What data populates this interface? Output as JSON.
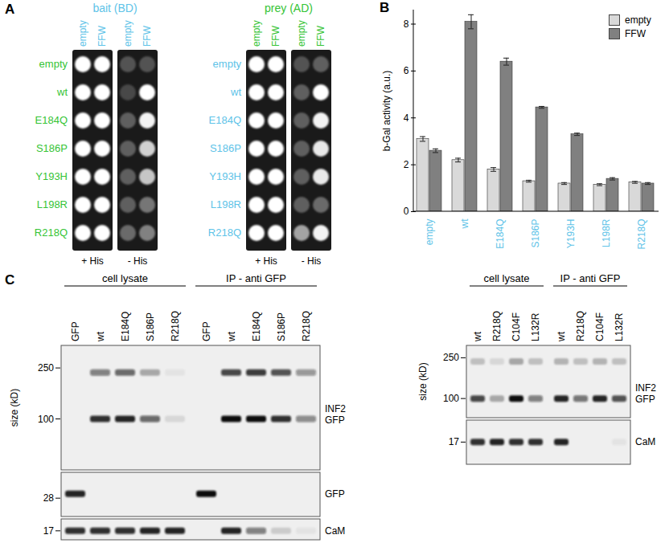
{
  "chart_data": {
    "type": "bar",
    "title": "B",
    "categories": [
      "empty",
      "wt",
      "E184Q",
      "S186P",
      "Y193H",
      "L198R",
      "R218Q"
    ],
    "series": [
      {
        "name": "empty",
        "color": "#d9d9d9",
        "values": [
          3.1,
          2.2,
          1.8,
          1.3,
          1.2,
          1.15,
          1.25
        ],
        "error": [
          0.1,
          0.08,
          0.08,
          0.04,
          0.04,
          0.04,
          0.04
        ]
      },
      {
        "name": "FFW",
        "color": "#808080",
        "values": [
          2.6,
          8.1,
          6.4,
          4.45,
          3.3,
          1.4,
          1.2
        ],
        "error": [
          0.08,
          0.3,
          0.15,
          0.04,
          0.05,
          0.05,
          0.04
        ]
      }
    ],
    "ylabel": "b-Gal activity (a.u.)",
    "ylim": [
      0,
      8.6
    ],
    "yticks": [
      0,
      2,
      4,
      6,
      8
    ],
    "grid": false,
    "legend": "top-right"
  },
  "panel_a": {
    "title": "A",
    "groups": [
      {
        "title": "bait (BD)",
        "columns": [
          "empty",
          "FFW"
        ],
        "rows": [
          "empty",
          "wt",
          "E184Q",
          "S186P",
          "Y193H",
          "L198R",
          "R218Q"
        ],
        "plates": [
          {
            "label": "+ His",
            "growth": [
              [
                1,
                1
              ],
              [
                1,
                1
              ],
              [
                1,
                1
              ],
              [
                1,
                1
              ],
              [
                1,
                1
              ],
              [
                1,
                1
              ],
              [
                1,
                1
              ]
            ]
          },
          {
            "label": "- His",
            "growth": [
              [
                0.25,
                0.25
              ],
              [
                0.2,
                1
              ],
              [
                0.3,
                0.95
              ],
              [
                0.3,
                0.8
              ],
              [
                0.3,
                0.75
              ],
              [
                0.3,
                0.4
              ],
              [
                0.35,
                0.45
              ]
            ]
          }
        ]
      },
      {
        "title": "prey (AD)",
        "columns": [
          "empty",
          "FFW"
        ],
        "rows": [
          "empty",
          "wt",
          "E184Q",
          "S186P",
          "Y193H",
          "L198R",
          "R218Q"
        ],
        "plates": [
          {
            "label": "+ His",
            "growth": [
              [
                1,
                1
              ],
              [
                1,
                1
              ],
              [
                1,
                1
              ],
              [
                1,
                1
              ],
              [
                1,
                1
              ],
              [
                1,
                1
              ],
              [
                1,
                1
              ]
            ]
          },
          {
            "label": "- His",
            "growth": [
              [
                0.25,
                0.3
              ],
              [
                0.3,
                1
              ],
              [
                0.3,
                0.95
              ],
              [
                0.3,
                0.9
              ],
              [
                0.3,
                0.9
              ],
              [
                0.3,
                0.35
              ],
              [
                0.6,
                0.95
              ]
            ]
          }
        ]
      }
    ]
  },
  "panel_c": {
    "title": "C",
    "blots": [
      {
        "size_label": "size (kD)",
        "groups": [
          {
            "title": "cell lysate",
            "lanes": [
              "GFP",
              "wt",
              "E184Q",
              "S186P",
              "R218Q"
            ]
          },
          {
            "title": "IP - anti GFP",
            "lanes": [
              "GFP",
              "wt",
              "E184Q",
              "S186P",
              "R218Q"
            ]
          }
        ],
        "strips": [
          {
            "names": [
              "INF2",
              "GFP"
            ],
            "kd_range": [
              375,
              40
            ],
            "markers": [
              250,
              100
            ],
            "bands": [
              {
                "kd": 100,
                "intensity": [
                  0,
                  0.85,
                  0.9,
                  0.6,
                  0.1,
                  0,
                  1,
                  1,
                  0.85,
                  0.45
                ]
              },
              {
                "kd": 230,
                "intensity": [
                  0,
                  0.5,
                  0.6,
                  0.3,
                  0.05,
                  0,
                  0.75,
                  0.8,
                  0.7,
                  0.4
                ]
              }
            ]
          },
          {
            "names": [
              "GFP"
            ],
            "kd_range": [
              42,
              21
            ],
            "markers": [
              28
            ],
            "bands": [
              {
                "kd": 30,
                "intensity": [
                  0.9,
                  0,
                  0,
                  0,
                  0,
                  1,
                  0,
                  0,
                  0,
                  0
                ]
              }
            ]
          },
          {
            "names": [
              "CaM"
            ],
            "kd_range": [
              22,
              14
            ],
            "markers": [
              17
            ],
            "bands": [
              {
                "kd": 17,
                "intensity": [
                  0.85,
                  0.85,
                  0.85,
                  0.9,
                  0.9,
                  0,
                  0.9,
                  0.5,
                  0.15,
                  0.05
                ]
              }
            ]
          }
        ]
      },
      {
        "size_label": "size (kD)",
        "groups": [
          {
            "title": "cell lysate",
            "lanes": [
              "wt",
              "R218Q",
              "C104F",
              "L132R"
            ]
          },
          {
            "title": "IP - anti GFP",
            "lanes": [
              "wt",
              "R218Q",
              "C104F",
              "L132R"
            ]
          }
        ],
        "strips": [
          {
            "names": [
              "INF2",
              "GFP"
            ],
            "kd_range": [
              330,
              65
            ],
            "markers": [
              250,
              100
            ],
            "bands": [
              {
                "kd": 100,
                "intensity": [
                  0.75,
                  0.3,
                  1,
                  0.5,
                  0.9,
                  0.55,
                  0.9,
                  0.7
                ]
              },
              {
                "kd": 230,
                "intensity": [
                  0.2,
                  0.1,
                  0.3,
                  0.2,
                  0.25,
                  0.2,
                  0.25,
                  0.2
                ]
              }
            ]
          },
          {
            "names": [
              "CaM"
            ],
            "kd_range": [
              24,
              12
            ],
            "markers": [
              17
            ],
            "bands": [
              {
                "kd": 17,
                "intensity": [
                  0.85,
                  0.9,
                  0.85,
                  0.85,
                  0.9,
                  0,
                  0,
                  0.05
                ]
              }
            ]
          }
        ]
      }
    ]
  }
}
